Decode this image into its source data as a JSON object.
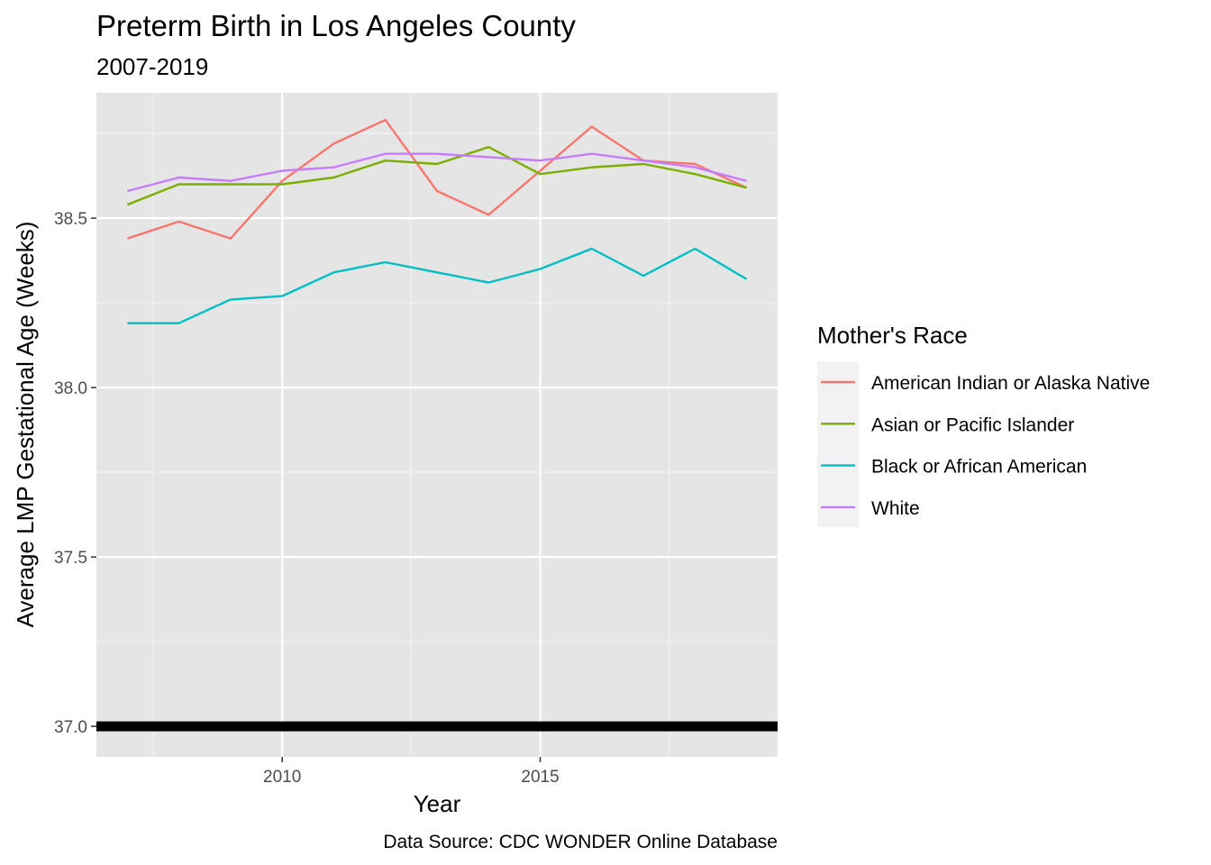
{
  "chart_data": {
    "type": "line",
    "title": "Preterm Birth in Los Angeles County",
    "subtitle": "2007-2019",
    "xlabel": "Year",
    "ylabel": "Average LMP Gestational Age (Weeks)",
    "caption": "Data Source: CDC WONDER Online Database",
    "x_ticks": [
      2010,
      2015
    ],
    "x_tick_labels": [
      "2010",
      "2015"
    ],
    "y_ticks": [
      37.0,
      37.5,
      38.0,
      38.5
    ],
    "y_tick_labels": [
      "37.0",
      "37.5",
      "38.0",
      "38.5"
    ],
    "xlim": [
      2006.4,
      2019.6
    ],
    "ylim": [
      36.91,
      38.87
    ],
    "grid": true,
    "reference_line": {
      "y": 37.0,
      "color": "#000000"
    },
    "legend": {
      "title": "Mother's Race",
      "position": "right"
    },
    "x": [
      2007,
      2008,
      2009,
      2010,
      2011,
      2012,
      2013,
      2014,
      2015,
      2016,
      2017,
      2018,
      2019
    ],
    "series": [
      {
        "name": "American Indian or Alaska Native",
        "color": "#F8766D",
        "values": [
          38.44,
          38.49,
          38.44,
          38.61,
          38.72,
          38.79,
          38.58,
          38.51,
          38.64,
          38.77,
          38.67,
          38.66,
          38.59
        ]
      },
      {
        "name": "Asian or Pacific Islander",
        "color": "#7CAE00",
        "values": [
          38.54,
          38.6,
          38.6,
          38.6,
          38.62,
          38.67,
          38.66,
          38.71,
          38.63,
          38.65,
          38.66,
          38.63,
          38.59
        ]
      },
      {
        "name": "Black or African American",
        "color": "#00BFC4",
        "values": [
          38.19,
          38.19,
          38.26,
          38.27,
          38.34,
          38.37,
          38.34,
          38.31,
          38.35,
          38.41,
          38.33,
          38.41,
          38.32
        ]
      },
      {
        "name": "White",
        "color": "#C77CFF",
        "values": [
          38.58,
          38.62,
          38.61,
          38.64,
          38.65,
          38.69,
          38.69,
          38.68,
          38.67,
          38.69,
          38.67,
          38.65,
          38.61
        ]
      }
    ]
  }
}
